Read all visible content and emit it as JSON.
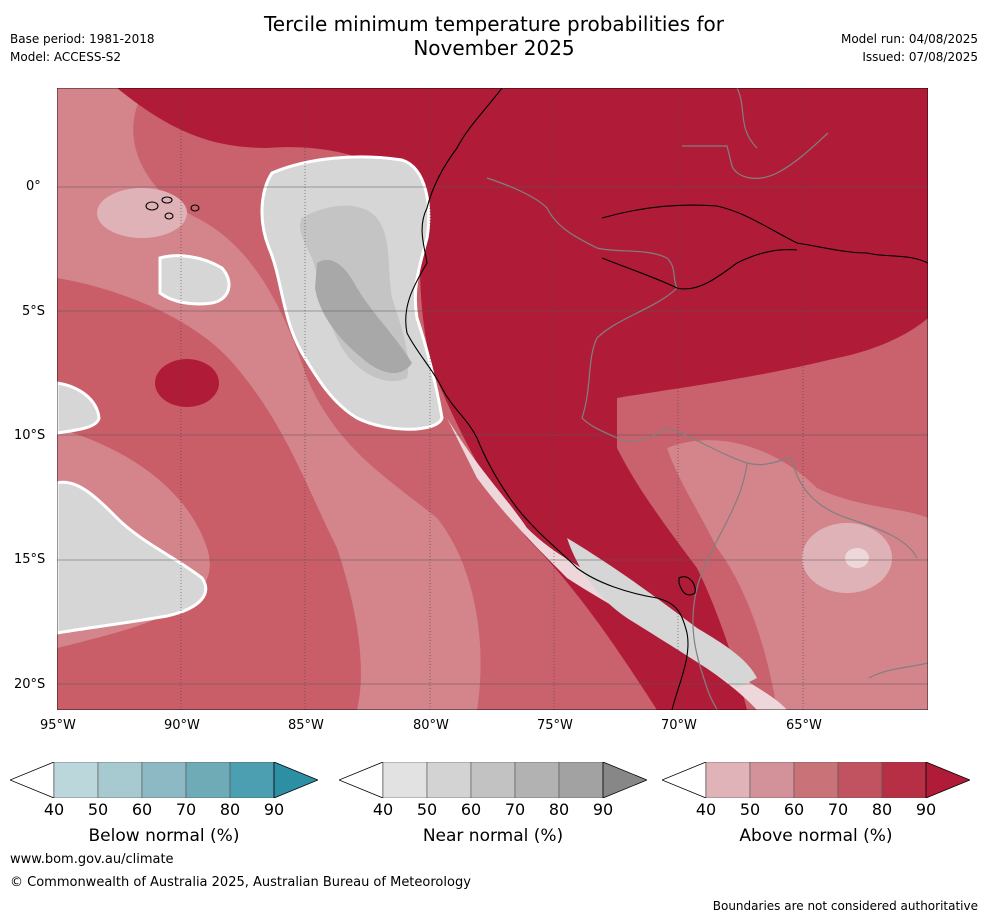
{
  "header": {
    "title_line1": "Tercile minimum temperature probabilities for",
    "title_line2": "November 2025",
    "base_period": "Base period: 1981-2018",
    "model": "Model: ACCESS-S2",
    "model_run": "Model run: 04/08/2025",
    "issued": "Issued: 07/08/2025"
  },
  "map": {
    "lon_ticks": [
      "95°W",
      "90°W",
      "85°W",
      "80°W",
      "75°W",
      "70°W",
      "65°W"
    ],
    "lat_ticks": [
      "0°",
      "5°S",
      "10°S",
      "15°S",
      "20°S"
    ],
    "colors": {
      "above_90": "#b01c38",
      "above_80": "#c0404f",
      "above_70": "#c9626c",
      "above_60": "#d4848b",
      "above_50": "#dfb2b7",
      "above_40": "#eed7da",
      "near_50": "#d6d6d6",
      "near_60": "#c4c4c4",
      "near_70": "#a8a8a8",
      "coast": "#000000",
      "border": "#808080"
    }
  },
  "colorbars": [
    {
      "caption": "Below normal (%)",
      "ticks": [
        "40",
        "50",
        "60",
        "70",
        "80",
        "90"
      ],
      "colors": [
        "#ffffff",
        "#bcd7dc",
        "#a7c9d0",
        "#8cb9c3",
        "#6fabb6",
        "#4b9fb0",
        "#2d8fa3"
      ]
    },
    {
      "caption": "Near normal (%)",
      "ticks": [
        "40",
        "50",
        "60",
        "70",
        "80",
        "90"
      ],
      "colors": [
        "#ffffff",
        "#e2e2e2",
        "#d3d3d3",
        "#c2c2c2",
        "#b2b2b2",
        "#a2a2a2",
        "#878787"
      ]
    },
    {
      "caption": "Above normal (%)",
      "ticks": [
        "40",
        "50",
        "60",
        "70",
        "80",
        "90"
      ],
      "colors": [
        "#ffffff",
        "#dfb3b8",
        "#d3929a",
        "#c97379",
        "#c0535f",
        "#b72f44",
        "#b01c38"
      ]
    }
  ],
  "footer": {
    "website": "www.bom.gov.au/climate",
    "copyright": "© Commonwealth of Australia 2025, Australian Bureau of Meteorology",
    "disclaimer": "Boundaries are not considered authoritative"
  }
}
